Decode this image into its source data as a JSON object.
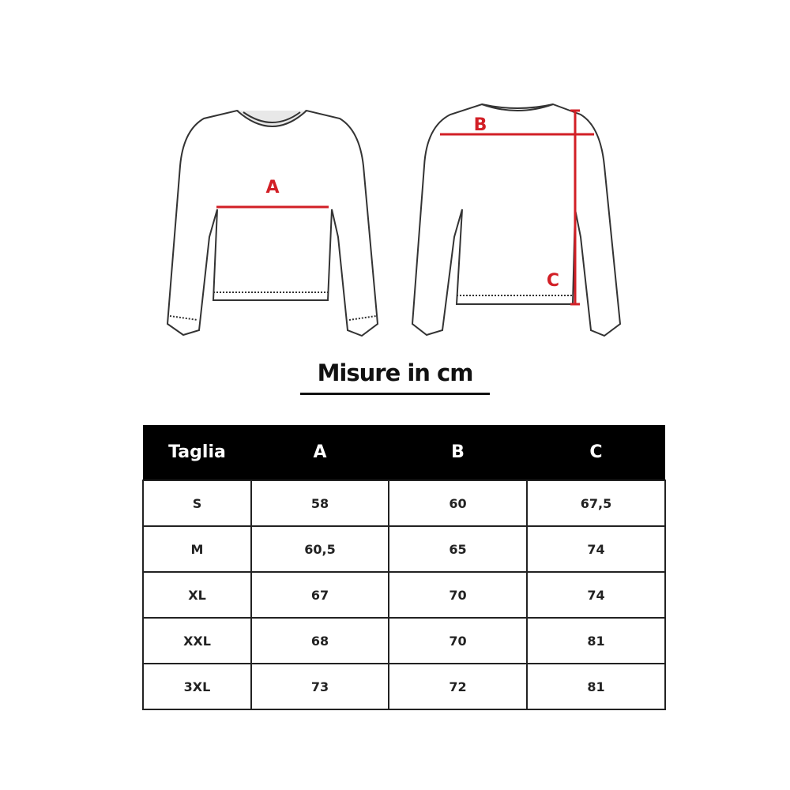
{
  "diagram": {
    "front_label": "A",
    "back_labels": [
      "B",
      "C"
    ],
    "accent_color": "#d21f26"
  },
  "title": "Misure in cm",
  "table": {
    "headers": [
      "Taglia",
      "A",
      "B",
      "C"
    ],
    "rows": [
      [
        "S",
        "58",
        "60",
        "67,5"
      ],
      [
        "M",
        "60,5",
        "65",
        "74"
      ],
      [
        "XL",
        "67",
        "70",
        "74"
      ],
      [
        "XXL",
        "68",
        "70",
        "81"
      ],
      [
        "3XL",
        "73",
        "72",
        "81"
      ]
    ]
  }
}
